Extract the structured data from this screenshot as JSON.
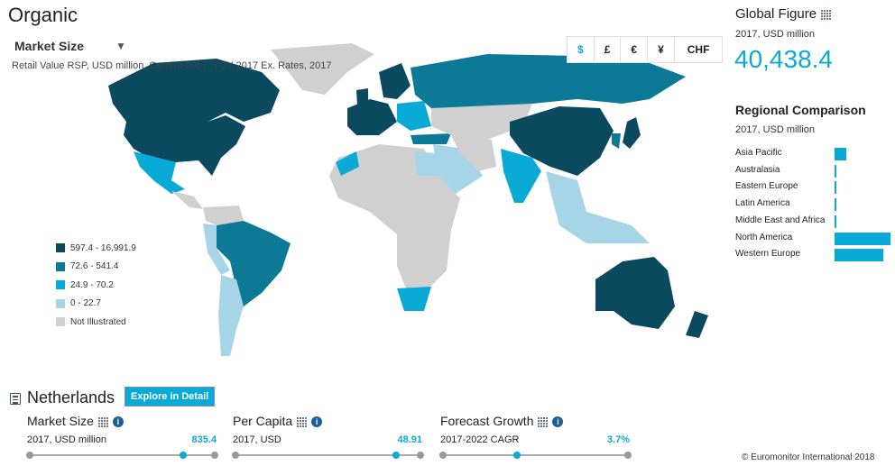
{
  "header": {
    "title": "Organic",
    "measure": "Market Size",
    "subtitle": "Retail Value RSP, USD million, Current 2017, YOY 2017 Ex. Rates, 2017"
  },
  "currency": {
    "options": [
      "$",
      "£",
      "€",
      "¥",
      "CHF"
    ],
    "selected": "$"
  },
  "legend": {
    "items": [
      {
        "label": "597.4 - 16,991.9",
        "color": "#0b4a5e"
      },
      {
        "label": "72.6 - 541.4",
        "color": "#0c7a97"
      },
      {
        "label": "24.9 - 70.2",
        "color": "#0aaad6"
      },
      {
        "label": "0 - 22.7",
        "color": "#a7d5e8"
      },
      {
        "label": "Not Illustrated",
        "color": "#d0d0d0"
      }
    ]
  },
  "colors": {
    "accent": "#0aaad6",
    "tier1": "#0b4a5e",
    "tier2": "#0c7a97",
    "tier3": "#0aaad6",
    "tier4": "#a7d5e8",
    "none": "#d0d0d0"
  },
  "global": {
    "title": "Global Figure",
    "unit": "2017, USD million",
    "value": "40,438.4"
  },
  "regional": {
    "title": "Regional Comparison",
    "unit": "2017, USD million",
    "regions": [
      {
        "label": "Asia Pacific",
        "value": 3600
      },
      {
        "label": "Australasia",
        "value": 500
      },
      {
        "label": "Eastern Europe",
        "value": 250
      },
      {
        "label": "Latin America",
        "value": 250
      },
      {
        "label": "Middle East and Africa",
        "value": 200
      },
      {
        "label": "North America",
        "value": 17500
      },
      {
        "label": "Western Europe",
        "value": 15200
      }
    ]
  },
  "country": {
    "name": "Netherlands",
    "explore_label": "Explore in Detail",
    "metrics": [
      {
        "title": "Market Size",
        "unit": "2017, USD million",
        "value": "835.4",
        "position": 0.83
      },
      {
        "title": "Per Capita",
        "unit": "2017, USD",
        "value": "48.91",
        "position": 0.87
      },
      {
        "title": "Forecast Growth",
        "unit": "2017-2022 CAGR",
        "value": "3.7%",
        "position": 0.4
      }
    ]
  },
  "footer": {
    "copyright": "© Euromonitor International 2018"
  }
}
